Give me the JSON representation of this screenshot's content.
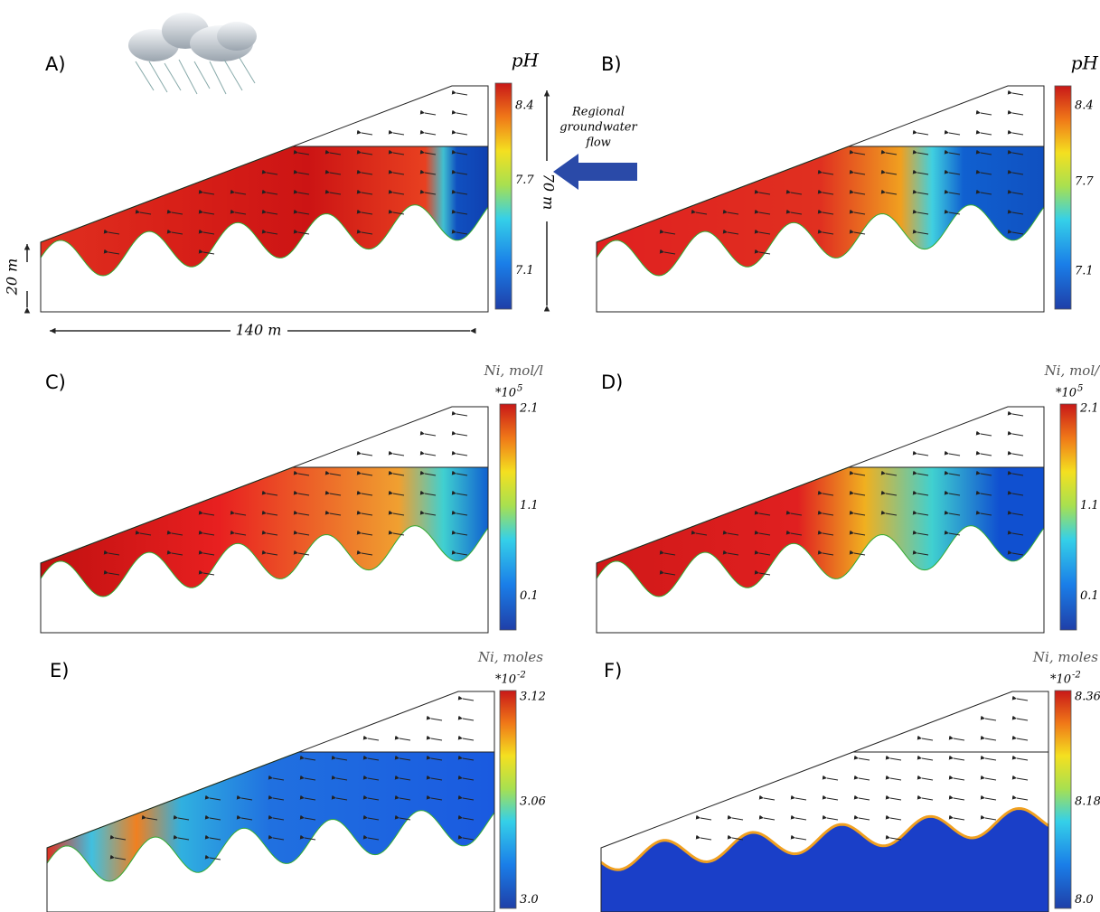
{
  "panels": [
    {
      "label": "A)",
      "colorbar": {
        "title": "pH",
        "ticks": [
          "8.4",
          "7.7",
          "7.1"
        ]
      }
    },
    {
      "label": "B)",
      "colorbar": {
        "title": "pH",
        "ticks": [
          "8.4",
          "7.7",
          "7.1"
        ]
      }
    },
    {
      "label": "C)",
      "colorbar": {
        "title": "Ni, mol/l",
        "multiplier": "*10",
        "exponent": "5",
        "ticks": [
          "2.1",
          "1.1",
          "0.1"
        ]
      }
    },
    {
      "label": "D)",
      "colorbar": {
        "title": "Ni, mol/l",
        "multiplier": "*10",
        "exponent": "5",
        "ticks": [
          "2.1",
          "1.1",
          "0.1"
        ]
      }
    },
    {
      "label": "E)",
      "colorbar": {
        "title": "Ni, moles",
        "multiplier": "*10",
        "exponent": "-2",
        "ticks": [
          "3.12",
          "3.06",
          "3.0"
        ]
      }
    },
    {
      "label": "F)",
      "colorbar": {
        "title": "Ni, moles",
        "multiplier": "*10",
        "exponent": "-2",
        "ticks": [
          "8.36",
          "8.18",
          "8.0"
        ]
      }
    }
  ],
  "annotations": {
    "flow": [
      "Regional",
      "groundwater",
      "flow"
    ],
    "height": "70 m",
    "depth": "20 m",
    "length": "140 m"
  }
}
